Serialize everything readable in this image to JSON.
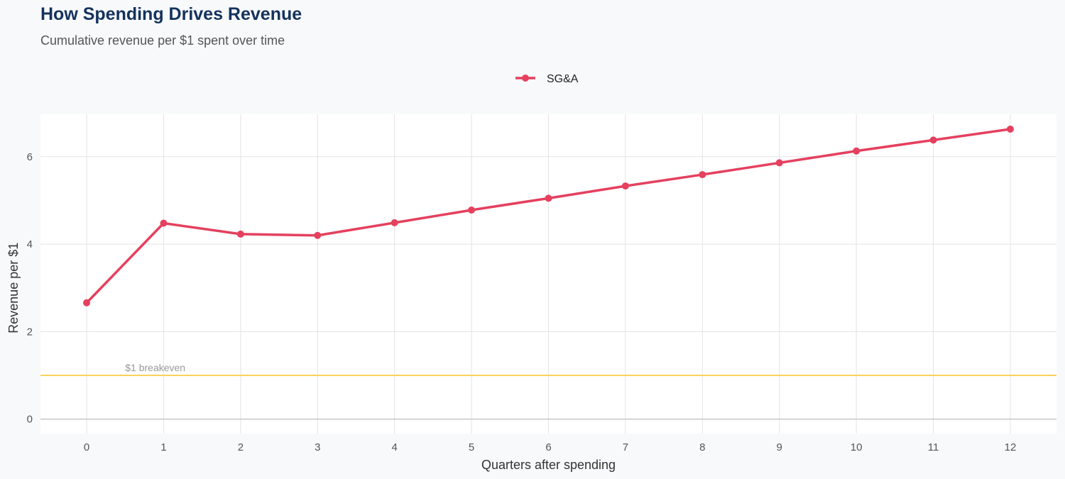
{
  "chart_data": {
    "type": "line",
    "title": "How Spending Drives Revenue",
    "subtitle": "Cumulative revenue per $1 spent over time",
    "xlabel": "Quarters after spending",
    "ylabel": "Revenue per $1",
    "x": [
      0,
      1,
      2,
      3,
      4,
      5,
      6,
      7,
      8,
      9,
      10,
      11,
      12
    ],
    "series": [
      {
        "name": "SG&A",
        "color": "#e5405e",
        "values": [
          2.66,
          4.48,
          4.23,
          4.2,
          4.49,
          4.78,
          5.05,
          5.33,
          5.59,
          5.86,
          6.13,
          6.38,
          6.63
        ]
      }
    ],
    "xticks": [
      "0",
      "1",
      "2",
      "3",
      "4",
      "5",
      "6",
      "7",
      "8",
      "9",
      "10",
      "11",
      "12"
    ],
    "yticks": [
      "0",
      "2",
      "4",
      "6"
    ],
    "xlim": [
      -0.6,
      12.6
    ],
    "ylim": [
      -0.33,
      6.97
    ],
    "grid": true,
    "legend_position": "top",
    "reference_line": {
      "value": 1,
      "label": "$1 breakeven",
      "color": "#f9d25b"
    }
  }
}
